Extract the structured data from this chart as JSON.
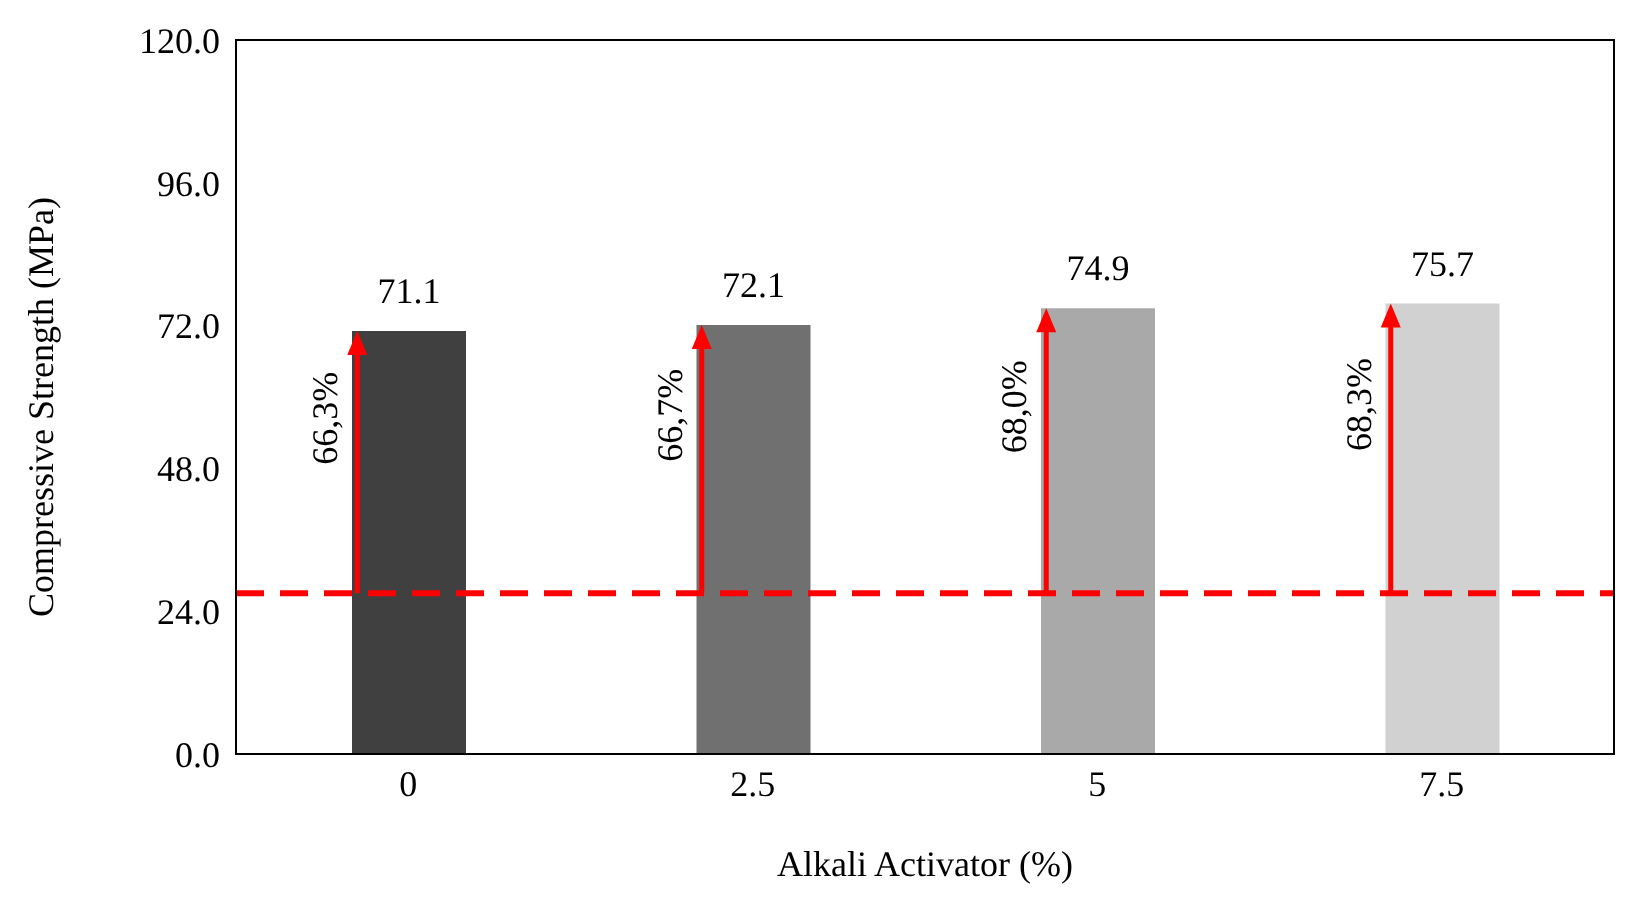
{
  "chart_data": {
    "type": "bar",
    "xlabel": "Alkali Activator (%)",
    "ylabel": "Compressive Strength (MPa)",
    "categories": [
      "0",
      "2.5",
      "5",
      "7.5"
    ],
    "values": [
      71.1,
      72.1,
      74.9,
      75.7
    ],
    "colors": [
      "#404040",
      "#707070",
      "#a9a9a9",
      "#d1d1d1"
    ],
    "ylim": [
      0,
      120
    ],
    "yticks": [
      {
        "value": 0,
        "label": "0.0"
      },
      {
        "value": 24,
        "label": "24.0"
      },
      {
        "value": 48,
        "label": "48.0"
      },
      {
        "value": 72,
        "label": "72.0"
      },
      {
        "value": 96,
        "label": "96.0"
      },
      {
        "value": 120,
        "label": "120.0"
      }
    ],
    "data_labels": true,
    "grid": false,
    "legend": false,
    "ref_lines": [
      {
        "axis": "y",
        "value": 27,
        "color": "#ff0000",
        "line_style": "dashed"
      }
    ],
    "annotations": [
      {
        "text": "66,3%",
        "x": "0",
        "y": 71.1
      },
      {
        "text": "66,7%",
        "x": "2.5",
        "y": 72.1
      },
      {
        "text": "68,0%",
        "x": "5",
        "y": 74.9
      },
      {
        "text": "68,3%",
        "x": "7.5",
        "y": 75.7
      }
    ]
  }
}
